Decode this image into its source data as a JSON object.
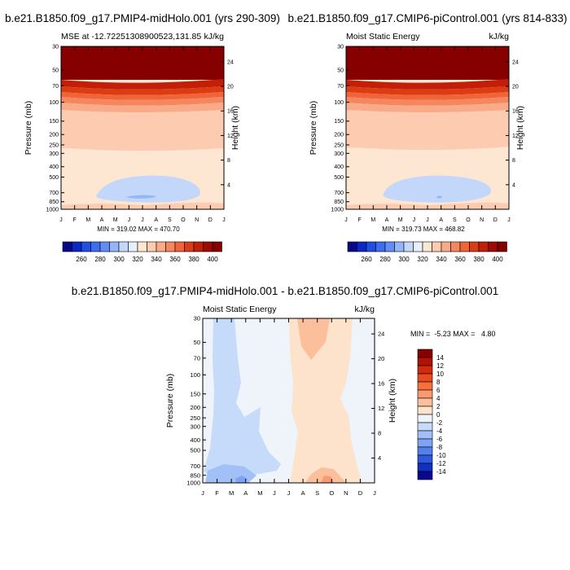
{
  "panel_a": {
    "title": "b.e21.B1850.f09_g17.PMIP4-midHolo.001 (yrs 290-309)",
    "left_label": "MSE at -12.72251308900523,131.85",
    "units": "kJ/kg",
    "stats": "MIN = 319.02 MAX = 470.70"
  },
  "panel_b": {
    "title": "b.e21.B1850.f09_g17.CMIP6-piControl.001 (yrs 814-833)",
    "left_label": "Moist Static Energy",
    "units": "kJ/kg",
    "stats": "MIN = 319.73 MAX = 468.82"
  },
  "panel_c": {
    "title": "b.e21.B1850.f09_g17.PMIP4-midHolo.001 - b.e21.B1850.f09_g17.CMIP6-piControl.001",
    "left_label": "Moist Static Energy",
    "units": "kJ/kg",
    "stats": "MIN =  -5.23 MAX =   4.80"
  },
  "axes": {
    "ylabel": "Pressure (mb)",
    "y2label": "Height (km)",
    "months": [
      "J",
      "F",
      "M",
      "A",
      "M",
      "J",
      "J",
      "A",
      "S",
      "O",
      "N",
      "D",
      "J"
    ],
    "pressure_ticks": [
      30,
      50,
      70,
      100,
      150,
      200,
      250,
      300,
      400,
      500,
      700,
      850,
      1000
    ],
    "height_ticks": [
      24,
      20,
      16,
      12,
      8,
      4
    ]
  },
  "colorbar_top": {
    "labels": [
      "260",
      "280",
      "300",
      "320",
      "340",
      "360",
      "380",
      "400"
    ],
    "colors": [
      "#08088a",
      "#0a28c8",
      "#1e4ee6",
      "#3c6ef0",
      "#648cf5",
      "#96b4fa",
      "#c3d7fa",
      "#e6f0fa",
      "#fde6d2",
      "#fccbb0",
      "#f9aa87",
      "#f58760",
      "#f06437",
      "#dc3c14",
      "#c31e08",
      "#a00a02",
      "#870000"
    ]
  },
  "colorbar_diff": {
    "labels": [
      "14",
      "12",
      "10",
      "8",
      "6",
      "4",
      "2",
      "0",
      "-2",
      "-4",
      "-6",
      "-8",
      "-10",
      "-12",
      "-14"
    ],
    "colors": [
      "#870000",
      "#b41004",
      "#d22a0c",
      "#ea4a1e",
      "#f6703c",
      "#f99a70",
      "#fbbf9c",
      "#fde3cb",
      "#eef4fa",
      "#c6daf9",
      "#a2c0f7",
      "#7ea2f4",
      "#5480ee",
      "#2e58e2",
      "#1030c0",
      "#080894"
    ]
  },
  "chart_data": [
    {
      "type": "heatmap",
      "title": "b.e21.B1850.f09_g17.PMIP4-midHolo.001 (yrs 290-309)",
      "ylabel": "Pressure (mb)",
      "y2label": "Height (km)",
      "x": [
        "J",
        "F",
        "M",
        "A",
        "M",
        "J",
        "J",
        "A",
        "S",
        "O",
        "N",
        "D",
        "J"
      ],
      "ylim": [
        1000,
        30
      ],
      "value_range": [
        319.02,
        470.7
      ],
      "units": "kJ/kg"
    },
    {
      "type": "heatmap",
      "title": "b.e21.B1850.f09_g17.CMIP6-piControl.001 (yrs 814-833)",
      "ylabel": "Pressure (mb)",
      "y2label": "Height (km)",
      "x": [
        "J",
        "F",
        "M",
        "A",
        "M",
        "J",
        "J",
        "A",
        "S",
        "O",
        "N",
        "D",
        "J"
      ],
      "ylim": [
        1000,
        30
      ],
      "value_range": [
        319.73,
        468.82
      ],
      "units": "kJ/kg"
    },
    {
      "type": "heatmap",
      "title": "b.e21.B1850.f09_g17.PMIP4-midHolo.001 - b.e21.B1850.f09_g17.CMIP6-piControl.001",
      "ylabel": "Pressure (mb)",
      "y2label": "Height (km)",
      "x": [
        "J",
        "F",
        "M",
        "A",
        "M",
        "J",
        "J",
        "A",
        "S",
        "O",
        "N",
        "D",
        "J"
      ],
      "ylim": [
        1000,
        30
      ],
      "value_range": [
        -5.23,
        4.8
      ],
      "units": "kJ/kg"
    }
  ]
}
